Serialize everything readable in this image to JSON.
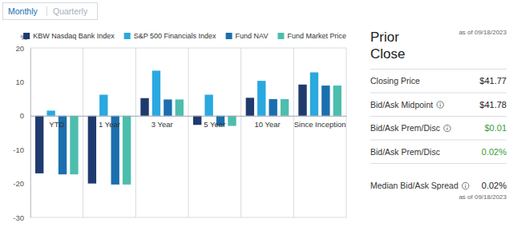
{
  "tabs": [
    "Monthly",
    "Quarterly"
  ],
  "chart_data": {
    "type": "bar",
    "ylabel": "%",
    "categories": [
      "YTD",
      "1 Year",
      "3 Year",
      "5 Year",
      "10 Year",
      "Since Inception"
    ],
    "series": [
      {
        "name": "KBW Nasdaq Bank Index",
        "color": "#1f3a6e",
        "values": [
          -17.0,
          -20.0,
          5.2,
          -2.7,
          5.3,
          9.2
        ]
      },
      {
        "name": "S&P 500 Financials Index",
        "color": "#2aa8e0",
        "values": [
          1.5,
          6.2,
          13.3,
          6.2,
          10.3,
          12.8
        ]
      },
      {
        "name": "Fund NAV",
        "color": "#1b6fae",
        "values": [
          -17.3,
          -20.3,
          4.8,
          -3.0,
          4.9,
          8.9
        ]
      },
      {
        "name": "Fund Market Price",
        "color": "#4dbdae",
        "values": [
          -17.3,
          -20.3,
          4.8,
          -3.0,
          4.9,
          8.9
        ]
      }
    ],
    "ylim": [
      -30,
      20
    ],
    "yticks": [
      -30,
      -20,
      -10,
      0,
      10,
      20
    ],
    "legend": "top"
  },
  "panel": {
    "title": "Prior Close",
    "as_of": "as of 09/18/2023",
    "rows": [
      {
        "label": "Closing Price",
        "value": "$41.77",
        "info": false
      },
      {
        "label": "Bid/Ask Midpoint",
        "value": "$41.78",
        "info": true
      },
      {
        "label": "Bid/Ask Prem/Disc",
        "value": "$0.01",
        "info": true,
        "color": "#3a9a3a"
      },
      {
        "label": "Bid/Ask Prem/Disc",
        "value": "0.02%",
        "info": false,
        "color": "#3a9a3a"
      }
    ],
    "footer": {
      "label": "Median Bid/Ask Spread",
      "value": "0.02%",
      "info": true,
      "as_of": "as of 09/18/2023"
    }
  }
}
